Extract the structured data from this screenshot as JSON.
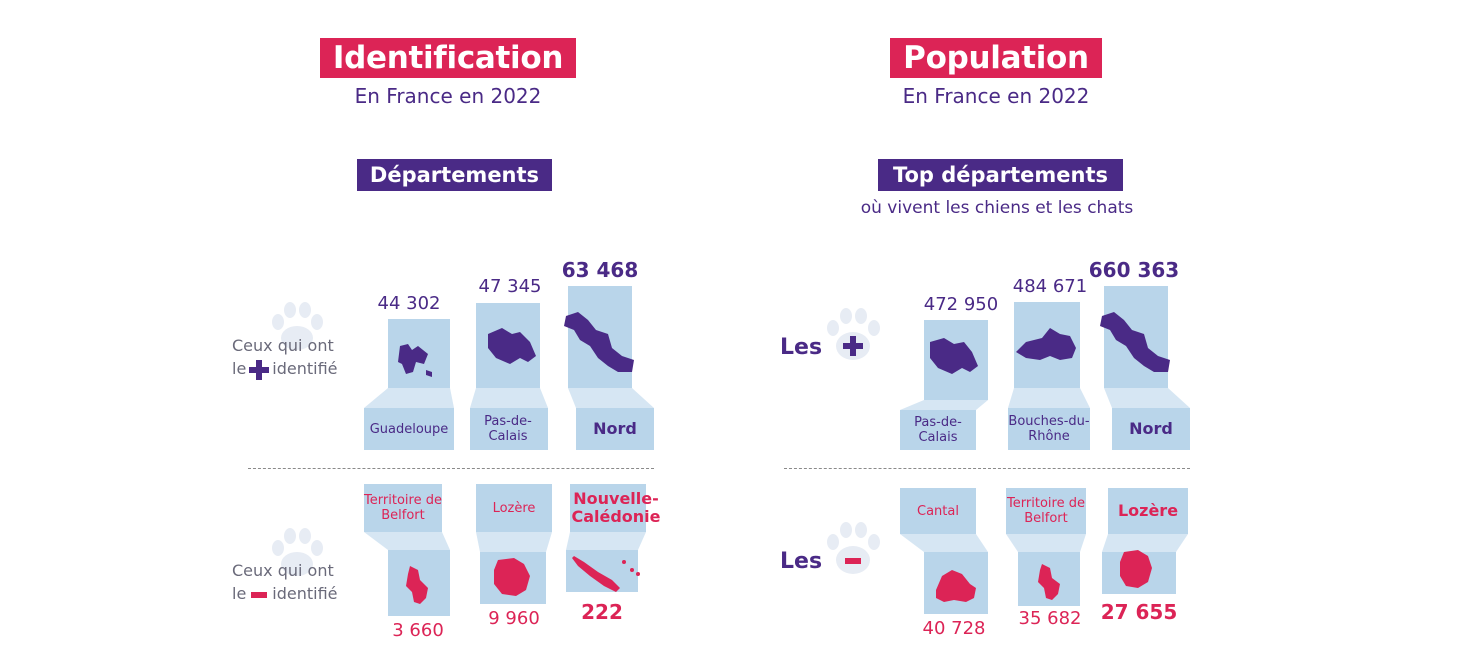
{
  "left": {
    "title": "Identification",
    "subtitle": "En France en 2022",
    "section": "Départements",
    "plus_text_line1": "Ceux qui ont",
    "plus_text_pre": "le",
    "plus_text_post": "identifié",
    "minus_text_line1": "Ceux qui ont",
    "minus_text_pre": "le",
    "minus_text_post": "identifié",
    "top": [
      {
        "value": "44 302",
        "name": "Guadeloupe"
      },
      {
        "value": "47 345",
        "name": "Pas-de-Calais"
      },
      {
        "value": "63 468",
        "name": "Nord"
      }
    ],
    "bottom": [
      {
        "value": "3 660",
        "name": "Territoire de Belfort"
      },
      {
        "value": "9 960",
        "name": "Lozère"
      },
      {
        "value": "222",
        "name": "Nouvelle-Calédonie"
      }
    ]
  },
  "right": {
    "title": "Population",
    "subtitle": "En France en 2022",
    "section": "Top départements",
    "section_sub": "où vivent les chiens et les chats",
    "les_plus": "Les",
    "les_minus": "Les",
    "top": [
      {
        "value": "472 950",
        "name": "Pas-de-Calais"
      },
      {
        "value": "484 671",
        "name": "Bouches-du-Rhône"
      },
      {
        "value": "660 363",
        "name": "Nord"
      }
    ],
    "bottom": [
      {
        "value": "40 728",
        "name": "Cantal"
      },
      {
        "value": "35 682",
        "name": "Territoire de Belfort"
      },
      {
        "value": "27 655",
        "name": "Lozère"
      }
    ]
  },
  "colors": {
    "accent_pink": "#dc2456",
    "accent_purple": "#4a2a86",
    "panel_blue": "#b9d5ea",
    "panel_light": "#d6e6f3",
    "paw_grey": "#e7ecf4"
  }
}
